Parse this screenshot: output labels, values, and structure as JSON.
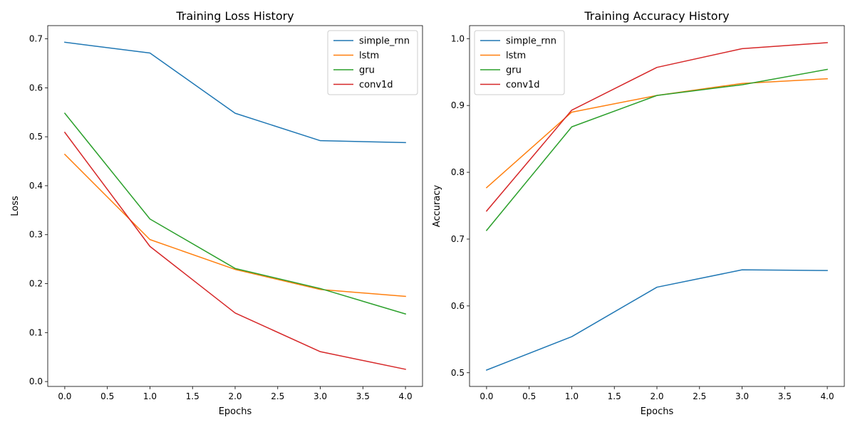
{
  "chart_data": [
    {
      "type": "line",
      "title": "Training Loss History",
      "xlabel": "Epochs",
      "ylabel": "Loss",
      "xlim": [
        -0.2,
        4.2
      ],
      "ylim": [
        -0.01,
        0.727
      ],
      "xticks": [
        0.0,
        0.5,
        1.0,
        1.5,
        2.0,
        2.5,
        3.0,
        3.5,
        4.0
      ],
      "xtick_labels": [
        "0.0",
        "0.5",
        "1.0",
        "1.5",
        "2.0",
        "2.5",
        "3.0",
        "3.5",
        "4.0"
      ],
      "yticks": [
        0.0,
        0.1,
        0.2,
        0.3,
        0.4,
        0.5,
        0.6,
        0.7
      ],
      "ytick_labels": [
        "0.0",
        "0.1",
        "0.2",
        "0.3",
        "0.4",
        "0.5",
        "0.6",
        "0.7"
      ],
      "legend_position": "top-right",
      "grid": false,
      "x": [
        0,
        1,
        2,
        3,
        4
      ],
      "series": [
        {
          "name": "simple_rnn",
          "color": "#1f77b4",
          "values": [
            0.693,
            0.671,
            0.548,
            0.492,
            0.488
          ]
        },
        {
          "name": "lstm",
          "color": "#ff7f0e",
          "values": [
            0.464,
            0.29,
            0.229,
            0.188,
            0.174
          ]
        },
        {
          "name": "gru",
          "color": "#2ca02c",
          "values": [
            0.548,
            0.332,
            0.231,
            0.19,
            0.138
          ]
        },
        {
          "name": "conv1d",
          "color": "#d62728",
          "values": [
            0.509,
            0.276,
            0.14,
            0.061,
            0.025
          ]
        }
      ]
    },
    {
      "type": "line",
      "title": "Training Accuracy History",
      "xlabel": "Epochs",
      "ylabel": "Accuracy",
      "xlim": [
        -0.2,
        4.2
      ],
      "ylim": [
        0.4795,
        1.0195
      ],
      "xticks": [
        0.0,
        0.5,
        1.0,
        1.5,
        2.0,
        2.5,
        3.0,
        3.5,
        4.0
      ],
      "xtick_labels": [
        "0.0",
        "0.5",
        "1.0",
        "1.5",
        "2.0",
        "2.5",
        "3.0",
        "3.5",
        "4.0"
      ],
      "yticks": [
        0.5,
        0.6,
        0.7,
        0.8,
        0.9,
        1.0
      ],
      "ytick_labels": [
        "0.5",
        "0.6",
        "0.7",
        "0.8",
        "0.9",
        "1.0"
      ],
      "legend_position": "top-left",
      "grid": false,
      "x": [
        0,
        1,
        2,
        3,
        4
      ],
      "series": [
        {
          "name": "simple_rnn",
          "color": "#1f77b4",
          "values": [
            0.504,
            0.554,
            0.628,
            0.654,
            0.653
          ]
        },
        {
          "name": "lstm",
          "color": "#ff7f0e",
          "values": [
            0.777,
            0.89,
            0.915,
            0.933,
            0.94
          ]
        },
        {
          "name": "gru",
          "color": "#2ca02c",
          "values": [
            0.713,
            0.868,
            0.915,
            0.931,
            0.954
          ]
        },
        {
          "name": "conv1d",
          "color": "#d62728",
          "values": [
            0.742,
            0.893,
            0.957,
            0.985,
            0.994
          ]
        }
      ]
    }
  ]
}
